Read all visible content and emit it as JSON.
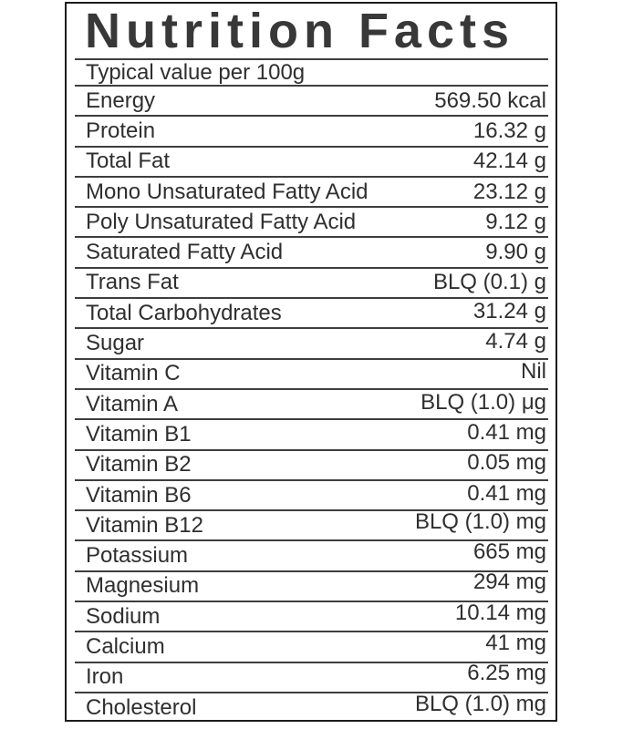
{
  "label": {
    "title": "Nutrition Facts",
    "subtitle": "Typical value per 100g",
    "colors": {
      "text": "#2f2f2f",
      "title_text": "#383838",
      "border": "#1c1c1c",
      "separator_line": "#3e3e3e",
      "background": "#ffffff"
    },
    "rows": [
      {
        "name": "Energy",
        "value": "569.50 kcal"
      },
      {
        "name": "Protein",
        "value": "16.32 g"
      },
      {
        "name": "Total Fat",
        "value": "42.14 g"
      },
      {
        "name": "Mono Unsaturated Fatty Acid",
        "value": "23.12 g"
      },
      {
        "name": "Poly Unsaturated Fatty Acid",
        "value": "9.12 g"
      },
      {
        "name": "Saturated Fatty Acid",
        "value": "9.90 g"
      },
      {
        "name": "Trans Fat",
        "value": "BLQ (0.1) g"
      },
      {
        "name": "Total Carbohydrates",
        "value": "31.24 g"
      },
      {
        "name": "Sugar",
        "value": "4.74 g"
      },
      {
        "name": "Vitamin C",
        "value": "Nil"
      },
      {
        "name": "Vitamin A",
        "value": "BLQ (1.0) μg"
      },
      {
        "name": "Vitamin B1",
        "value": "0.41 mg"
      },
      {
        "name": "Vitamin B2",
        "value": "0.05 mg"
      },
      {
        "name": "Vitamin B6",
        "value": "0.41 mg"
      },
      {
        "name": "Vitamin B12",
        "value": "BLQ (1.0) mg"
      },
      {
        "name": "Potassium",
        "value": "665 mg"
      },
      {
        "name": "Magnesium",
        "value": "294 mg"
      },
      {
        "name": "Sodium",
        "value": "10.14 mg"
      },
      {
        "name": "Calcium",
        "value": "41 mg"
      },
      {
        "name": "Iron",
        "value": "6.25 mg"
      },
      {
        "name": "Cholesterol",
        "value": "BLQ (1.0) mg"
      }
    ]
  }
}
